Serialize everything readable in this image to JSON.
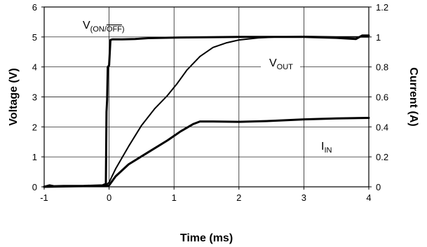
{
  "chart_data": {
    "type": "line",
    "xlabel": "Time (ms)",
    "ylabel_left": "Voltage (V)",
    "ylabel_right": "Current (A)",
    "xlim": [
      -1,
      4
    ],
    "ylim_left": [
      0,
      6
    ],
    "ylim_right": [
      0,
      1.2
    ],
    "grid": true,
    "x_ticks": [
      "-1",
      "0",
      "1",
      "2",
      "3",
      "4"
    ],
    "y_ticks_left": [
      "0",
      "1",
      "2",
      "3",
      "4",
      "5",
      "6"
    ],
    "y_ticks_right": [
      "0",
      "0.2",
      "0.4",
      "0.6",
      "0.8",
      "1",
      "1.2"
    ],
    "annotations": {
      "v_on_off": {
        "base": "V",
        "sub_open": "(ON/",
        "sub_bar": "OFF",
        "sub_close": ")"
      },
      "v_out": {
        "base": "V",
        "sub": "OUT"
      },
      "i_in": {
        "base": "I",
        "sub": "IN"
      }
    },
    "series": [
      {
        "axis": "left",
        "stroke_width": 3,
        "points": [
          [
            -1,
            0
          ],
          [
            -0.92,
            0.05
          ],
          [
            -0.85,
            0.02
          ],
          [
            -0.7,
            0.03
          ],
          [
            -0.4,
            0.03
          ],
          [
            -0.1,
            0.05
          ],
          [
            -0.05,
            0.1
          ],
          [
            -0.04,
            2.5
          ],
          [
            -0.03,
            2.9
          ],
          [
            -0.02,
            4.0
          ],
          [
            0.0,
            4.05
          ],
          [
            0.02,
            4.9
          ],
          [
            0.05,
            4.92
          ],
          [
            0.2,
            4.92
          ],
          [
            0.4,
            4.93
          ],
          [
            0.6,
            4.96
          ],
          [
            1.0,
            4.98
          ],
          [
            1.5,
            4.99
          ],
          [
            2.0,
            5.0
          ],
          [
            3.0,
            5.0
          ],
          [
            3.5,
            4.97
          ],
          [
            3.8,
            4.93
          ],
          [
            3.9,
            5.05
          ],
          [
            4.0,
            5.05
          ]
        ]
      },
      {
        "axis": "left",
        "stroke_width": 2,
        "points": [
          [
            -1,
            0
          ],
          [
            -0.5,
            0.02
          ],
          [
            -0.05,
            0.05
          ],
          [
            0.0,
            0.15
          ],
          [
            0.1,
            0.6
          ],
          [
            0.3,
            1.35
          ],
          [
            0.5,
            2.05
          ],
          [
            0.7,
            2.6
          ],
          [
            0.9,
            3.05
          ],
          [
            1.05,
            3.45
          ],
          [
            1.2,
            3.9
          ],
          [
            1.4,
            4.35
          ],
          [
            1.6,
            4.65
          ],
          [
            1.8,
            4.8
          ],
          [
            2.0,
            4.9
          ],
          [
            2.3,
            4.97
          ],
          [
            2.6,
            5.0
          ],
          [
            3.0,
            5.02
          ],
          [
            3.5,
            5.0
          ],
          [
            4.0,
            5.0
          ]
        ]
      },
      {
        "axis": "left",
        "stroke_width": 3,
        "points": [
          [
            -1,
            0
          ],
          [
            -0.5,
            0.02
          ],
          [
            -0.05,
            0.03
          ],
          [
            0.0,
            0.05
          ],
          [
            0.1,
            0.35
          ],
          [
            0.3,
            0.75
          ],
          [
            0.6,
            1.15
          ],
          [
            0.9,
            1.55
          ],
          [
            1.1,
            1.85
          ],
          [
            1.3,
            2.1
          ],
          [
            1.4,
            2.18
          ],
          [
            1.6,
            2.18
          ],
          [
            2.0,
            2.17
          ],
          [
            2.5,
            2.2
          ],
          [
            3.0,
            2.25
          ],
          [
            3.5,
            2.28
          ],
          [
            4.0,
            2.3
          ]
        ]
      }
    ]
  }
}
